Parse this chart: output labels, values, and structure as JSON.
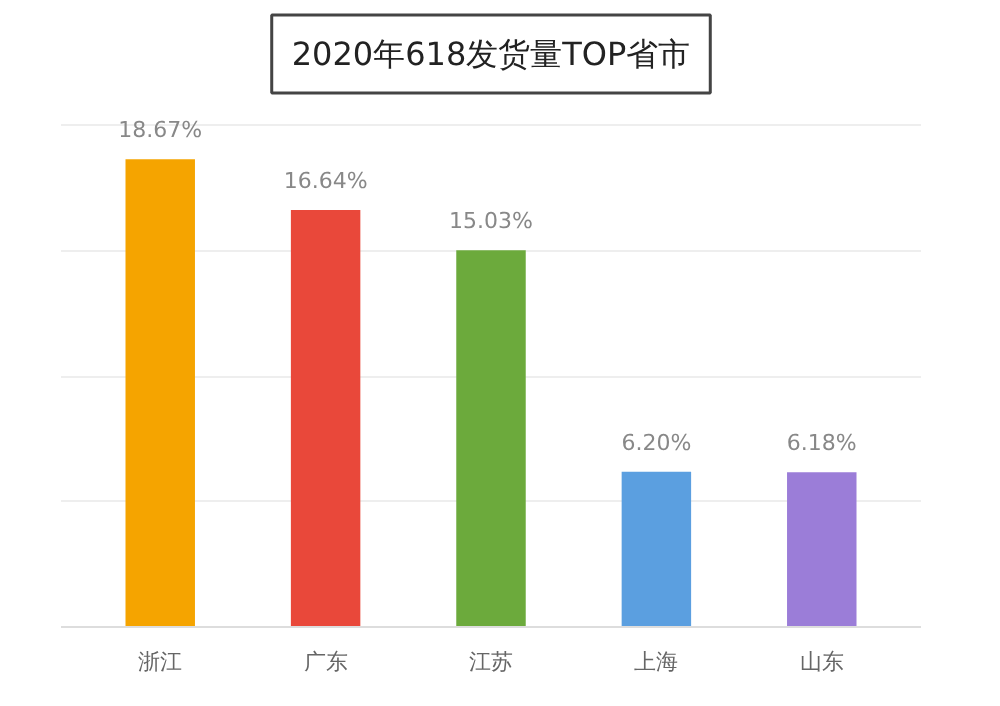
{
  "chart_data": {
    "type": "bar",
    "title": "2020年618发货量TOP省市",
    "categories": [
      "浙江",
      "广东",
      "江苏",
      "上海",
      "山东"
    ],
    "values": [
      18.67,
      16.64,
      15.03,
      6.2,
      6.18
    ],
    "colors": [
      "#f5a400",
      "#e9483a",
      "#6caa3c",
      "#5b9fe0",
      "#9b7dd8"
    ],
    "value_labels": [
      "18.67%",
      "16.64%",
      "15.03%",
      "6.20%",
      "6.18%"
    ]
  }
}
